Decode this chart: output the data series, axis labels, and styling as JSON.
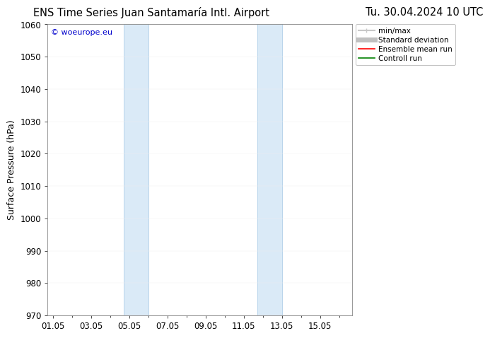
{
  "title_left": "ENS Time Series Juan Santamaría Intl. Airport",
  "title_right": "Tu. 30.04.2024 10 UTC",
  "ylabel": "Surface Pressure (hPa)",
  "ylim": [
    970,
    1060
  ],
  "yticks": [
    970,
    980,
    990,
    1000,
    1010,
    1020,
    1030,
    1040,
    1050,
    1060
  ],
  "xlabel_ticks": [
    "01.05",
    "03.05",
    "05.05",
    "07.05",
    "09.05",
    "11.05",
    "13.05",
    "15.05"
  ],
  "x_positions": [
    0,
    2,
    4,
    6,
    8,
    10,
    12,
    14
  ],
  "x_min": -0.3,
  "x_max": 15.7,
  "shaded_bands": [
    {
      "x_start": 3.7,
      "x_end": 5.0,
      "color": "#daeaf7"
    },
    {
      "x_start": 10.7,
      "x_end": 12.0,
      "color": "#daeaf7"
    }
  ],
  "band_edge_color": "#b8d4eb",
  "watermark_text": "© woeurope.eu",
  "watermark_color": "#0000cc",
  "legend_items": [
    {
      "label": "min/max",
      "color": "#c8c8c8",
      "linewidth": 1.5,
      "style": "-"
    },
    {
      "label": "Standard deviation",
      "color": "#c0c0c0",
      "linewidth": 5,
      "style": "-"
    },
    {
      "label": "Ensemble mean run",
      "color": "#ff0000",
      "linewidth": 1.2,
      "style": "-"
    },
    {
      "label": "Controll run",
      "color": "#008000",
      "linewidth": 1.2,
      "style": "-"
    }
  ],
  "background_color": "#ffffff",
  "grid_color": "#e0e0e0",
  "title_fontsize": 10.5,
  "tick_fontsize": 8.5,
  "ylabel_fontsize": 9
}
